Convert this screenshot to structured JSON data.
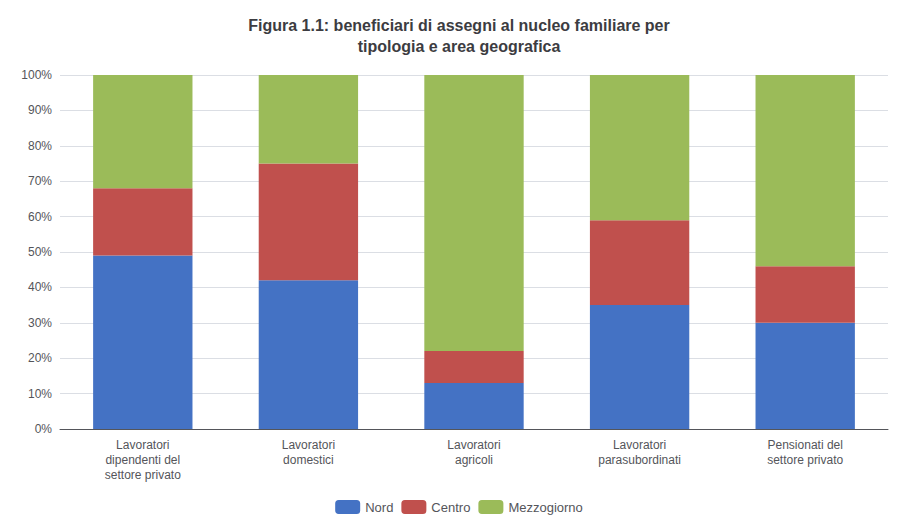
{
  "chart_data": {
    "type": "bar",
    "title": "Figura 1.1: beneficiari di assegni al nucleo familiare per\ntipologia e area geografica",
    "categories": [
      "Lavoratori\ndipendenti del\nsettore privato",
      "Lavoratori\ndomestici",
      "Lavoratori\nagricoli",
      "Lavoratori\nparasubordinati",
      "Pensionati del\nsettore privato"
    ],
    "series": [
      {
        "name": "Nord",
        "color": "#4472C4",
        "values": [
          49,
          42,
          13,
          35,
          30
        ]
      },
      {
        "name": "Centro",
        "color": "#C0504D",
        "values": [
          19,
          33,
          9,
          24,
          16
        ]
      },
      {
        "name": "Mezzogiorno",
        "color": "#9BBB59",
        "values": [
          32,
          25,
          78,
          41,
          54
        ]
      }
    ],
    "stacked": true,
    "ylim": [
      0,
      100
    ],
    "yticks": [
      {
        "value": 0,
        "label": "0%"
      },
      {
        "value": 10,
        "label": "10%"
      },
      {
        "value": 20,
        "label": "20%"
      },
      {
        "value": 30,
        "label": "30%"
      },
      {
        "value": 40,
        "label": "40%"
      },
      {
        "value": 50,
        "label": "50%"
      },
      {
        "value": 60,
        "label": "60%"
      },
      {
        "value": 70,
        "label": "70%"
      },
      {
        "value": 80,
        "label": "80%"
      },
      {
        "value": 90,
        "label": "90%"
      },
      {
        "value": 100,
        "label": "100%"
      }
    ],
    "grid": true,
    "legend": "bottom"
  }
}
